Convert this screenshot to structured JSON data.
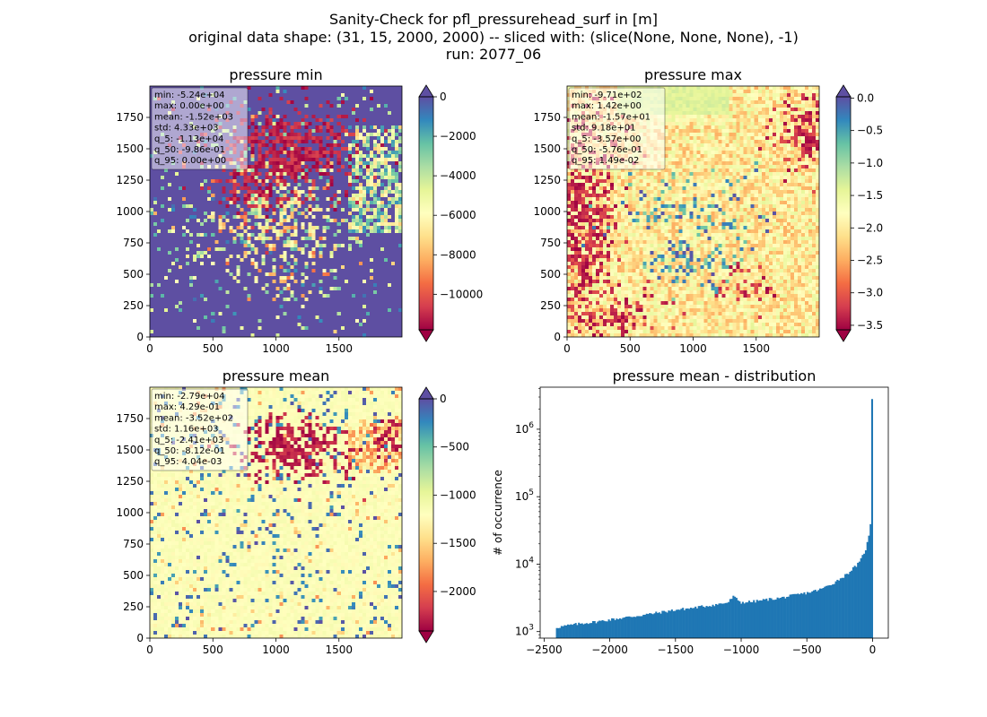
{
  "suptitle": {
    "line1": "Sanity-Check for pfl_pressurehead_surf in [m]",
    "line2": "original data shape: (31, 15, 2000, 2000) -- sliced with: (slice(None, None, None), -1)",
    "line3": "run: 2077_06"
  },
  "colors": {
    "spectral": [
      "#9e0142",
      "#d53e4f",
      "#f46d43",
      "#fdae61",
      "#fee08b",
      "#ffffbf",
      "#e6f598",
      "#abdda4",
      "#66c2a5",
      "#3288bd",
      "#5e4fa2"
    ],
    "histogram_bar": "#1f77b4"
  },
  "chart_data": [
    {
      "type": "heatmap",
      "title": "pressure min",
      "xlim": [
        0,
        2000
      ],
      "ylim": [
        0,
        2000
      ],
      "xticks": [
        "0",
        "500",
        "1000",
        "1500"
      ],
      "yticks": [
        "0",
        "250",
        "500",
        "750",
        "1000",
        "1250",
        "1500",
        "1750"
      ],
      "colorbar": {
        "range": [
          -11800,
          0
        ],
        "ticks": [
          "0",
          "−2000",
          "−4000",
          "−6000",
          "−8000",
          "−10000"
        ],
        "extend": "both",
        "cmap": "Spectral"
      },
      "stats": [
        "min: -5.24e+04",
        "max: 0.00e+00",
        "mean: -1.52e+03",
        "std: 4.33e+03",
        "q_5: -1.13e+04",
        "q_50: -9.86e-01",
        "q_95: 0.00e+00"
      ]
    },
    {
      "type": "heatmap",
      "title": "pressure max",
      "xlim": [
        0,
        2000
      ],
      "ylim": [
        0,
        2000
      ],
      "xticks": [
        "0",
        "500",
        "1000",
        "1500"
      ],
      "yticks": [
        "0",
        "250",
        "500",
        "750",
        "1000",
        "1250",
        "1500",
        "1750"
      ],
      "colorbar": {
        "range": [
          -3.57,
          0.02
        ],
        "ticks": [
          "0.0",
          "−0.5",
          "−1.0",
          "−1.5",
          "−2.0",
          "−2.5",
          "−3.0",
          "−3.5"
        ],
        "extend": "both",
        "cmap": "Spectral"
      },
      "stats": [
        "min: -9.71e+02",
        "max: 1.42e+00",
        "mean: -1.57e+01",
        "std: 9.18e+01",
        "q_5: -3.57e+00",
        "q_50: -5.76e-01",
        "q_95: 1.49e-02"
      ]
    },
    {
      "type": "heatmap",
      "title": "pressure mean",
      "xlim": [
        0,
        2000
      ],
      "ylim": [
        0,
        2000
      ],
      "xticks": [
        "0",
        "500",
        "1000",
        "1500"
      ],
      "yticks": [
        "0",
        "250",
        "500",
        "750",
        "1000",
        "1250",
        "1500",
        "1750"
      ],
      "colorbar": {
        "range": [
          -2410,
          0.04
        ],
        "ticks": [
          "0",
          "−500",
          "−1000",
          "−1500",
          "−2000"
        ],
        "extend": "both",
        "cmap": "Spectral"
      },
      "stats": [
        "min: -2.79e+04",
        "max: 4.29e-01",
        "mean: -3.52e+02",
        "std: 1.16e+03",
        "q_5: -2.41e+03",
        "q_50: -8.12e-01",
        "q_95: 4.04e-03"
      ]
    },
    {
      "type": "bar",
      "title": "pressure mean - distribution",
      "ylabel": "# of occurrence",
      "xlabel": "",
      "yscale": "log",
      "xlim": [
        -2530,
        120
      ],
      "ylim": [
        800,
        4200000
      ],
      "xticks": [
        "−2500",
        "−2000",
        "−1500",
        "−1000",
        "−500",
        "0"
      ],
      "yticks": [
        "10^3",
        "10^4",
        "10^5",
        "10^6"
      ],
      "bin_width": 12,
      "counts_anchors": [
        [
          -2410,
          1150
        ],
        [
          -2300,
          1250
        ],
        [
          -2200,
          1330
        ],
        [
          -2100,
          1400
        ],
        [
          -2000,
          1500
        ],
        [
          -1900,
          1600
        ],
        [
          -1800,
          1700
        ],
        [
          -1700,
          1820
        ],
        [
          -1600,
          1950
        ],
        [
          -1500,
          2100
        ],
        [
          -1400,
          2200
        ],
        [
          -1300,
          2350
        ],
        [
          -1200,
          2500
        ],
        [
          -1100,
          2700
        ],
        [
          -1060,
          3300
        ],
        [
          -1000,
          2700
        ],
        [
          -900,
          2800
        ],
        [
          -800,
          3000
        ],
        [
          -700,
          3150
        ],
        [
          -600,
          3450
        ],
        [
          -500,
          3750
        ],
        [
          -400,
          4200
        ],
        [
          -300,
          5200
        ],
        [
          -200,
          7000
        ],
        [
          -100,
          10500
        ],
        [
          -50,
          17000
        ],
        [
          -20,
          30000
        ],
        [
          -8,
          70000
        ],
        [
          0,
          2800000
        ]
      ]
    }
  ]
}
